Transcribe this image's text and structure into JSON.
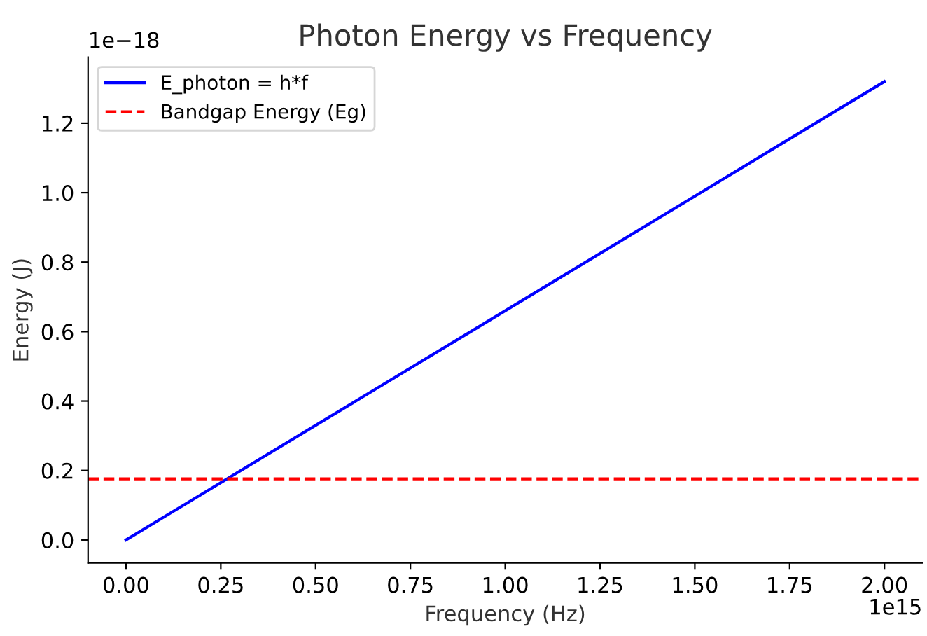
{
  "chart_data": {
    "type": "line",
    "title": "Photon Energy vs Frequency",
    "xlabel": "Frequency (Hz)",
    "ylabel": "Energy (J)",
    "x": [
      0,
      2
    ],
    "series": [
      {
        "name": "E_photon = h*f",
        "color": "#0000ff",
        "values": [
          0,
          1.32
        ],
        "line_style": "solid"
      }
    ],
    "ref_lines": [
      {
        "axis": "y",
        "value": 0.176,
        "label": "Bandgap Energy (Eg)",
        "color": "#ff0000",
        "line_style": "dashed"
      }
    ],
    "xlim": [
      -0.1,
      2.1
    ],
    "ylim": [
      -0.066,
      1.39
    ],
    "xticks": [
      {
        "value": 0,
        "label": "0.00"
      },
      {
        "value": 0.25,
        "label": "0.25"
      },
      {
        "value": 0.5,
        "label": "0.50"
      },
      {
        "value": 0.75,
        "label": "0.75"
      },
      {
        "value": 1,
        "label": "1.00"
      },
      {
        "value": 1.25,
        "label": "1.25"
      },
      {
        "value": 1.5,
        "label": "1.50"
      },
      {
        "value": 1.75,
        "label": "1.75"
      },
      {
        "value": 2,
        "label": "2.00"
      }
    ],
    "yticks": [
      {
        "value": 0,
        "label": "0.0"
      },
      0.2,
      0.4,
      0.6,
      0.8,
      {
        "value": 1,
        "label": "1.0"
      },
      1.2
    ],
    "annotations": [
      "1e−18",
      "1e15"
    ],
    "grid": false,
    "legend": "top left",
    "marker": "none"
  }
}
